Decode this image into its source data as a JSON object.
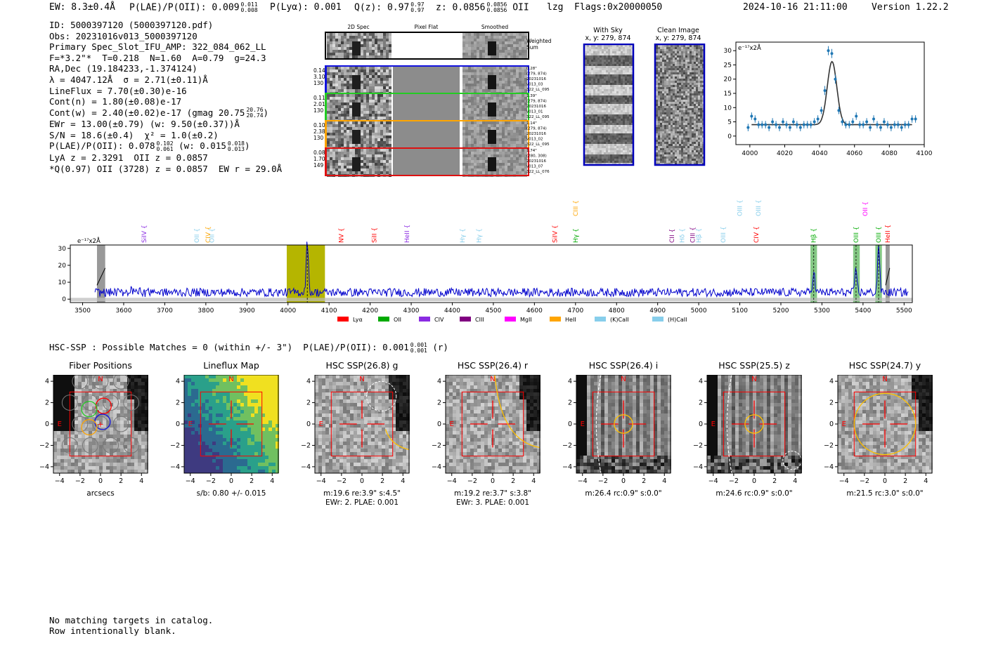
{
  "header": {
    "ew": "EW: 8.3±0.4Å",
    "plae_label": "P(LAE)/P(OII): 0.009",
    "plae_hi": "0.011",
    "plae_lo": "0.008",
    "plya": "P(Lyα): 0.001",
    "q_label": "Q(z): 0.97",
    "q_hi": "0.97",
    "q_lo": "0.97",
    "z_label": "z: 0.0856",
    "z_hi": "0.0856",
    "z_lo": "0.0856",
    "z_line": "OII",
    "user": "lzg",
    "flags": "Flags:0x20000050",
    "datetime": "2024-10-16 21:11:00",
    "version": "Version 1.22.2"
  },
  "info": {
    "id": "ID: 5000397120 (5000397120.pdf)",
    "obs": "Obs: 20231016v013_5000397120",
    "primary": "Primary Spec_Slot_IFU_AMP: 322_084_062_LL",
    "params": "F=*3.2\"*  T=0.218  N=1.60  A=0.79  g=24.3",
    "radec": "RA,Dec (19.184233,-1.374124)",
    "lambda": "λ = 4047.12Å  σ = 2.71(±0.11)Å",
    "lineflux": "LineFlux = 7.70(±0.30)e-16",
    "contn": "Cont(n) = 1.80(±0.08)e-17",
    "contw": "Cont(w) = 2.40(±0.02)e-17 (gmag 20.75",
    "contw_hi": "20.76",
    "contw_lo": "20.74",
    "contw_close": ")",
    "ewr": "EWr = 13.00(±0.79) (w: 9.50(±0.37))Å",
    "sn": "S/N = 18.6(±0.4)  χ² = 1.0(±0.2)",
    "plae": "P(LAE)/P(OII): 0.078",
    "plae_hi": "0.102",
    "plae_lo": "0.061",
    "plae_w": "(w: 0.015",
    "plae_w_hi": "0.018",
    "plae_w_lo": "0.013",
    "plae_w_close": ")",
    "lya": "LyA z = 2.3291  OII z = 0.0857",
    "q": "*Q(0.97) OII (3728) z = 0.0857  EW r = 29.0Å"
  },
  "cutouts": {
    "headers": [
      "2D Spec",
      "Pixel Flat",
      "Smoothed"
    ],
    "weighted_sum": "Weighted Sum",
    "rows": [
      {
        "left": [
          "0.14",
          "3.10",
          "130"
        ],
        "right": [
          "0.28\"",
          "(279, 874)",
          "20231016",
          "v013_03",
          "322_LL_095"
        ],
        "color": "#1111dd"
      },
      {
        "left": [
          "0.11",
          "2.01",
          "130"
        ],
        "right": [
          "1.39\"",
          "(279, 874)",
          "20231016",
          "v013_01",
          "322_LL_095"
        ],
        "color": "#22cc22"
      },
      {
        "left": [
          "0.10",
          "2.38",
          "130"
        ],
        "right": [
          "1.14\"",
          "(279, 874)",
          "20231016",
          "v013_02",
          "322_LL_095"
        ],
        "color": "#ffa500"
      },
      {
        "left": [
          "0.08",
          "1.70",
          "149"
        ],
        "right": [
          "1.74\"",
          "(280, 308)",
          "20231016",
          "v013_07",
          "322_LL_076"
        ],
        "color": "#dd1111"
      }
    ]
  },
  "sky": {
    "with_sky_title": "With Sky",
    "with_sky_xy": "x, y: 279, 874",
    "clean_title": "Clean Image",
    "clean_xy": "x, y: 279, 874"
  },
  "colors": {
    "blue_line": "#0000cc",
    "fit_blue": "#1f77b4",
    "red": "#ff0000",
    "green": "#00aa00",
    "olive": "#b5b500",
    "yellow_circle": "#ffc000"
  },
  "chart_data": [
    {
      "type": "scatter",
      "title": "",
      "unit_label": "e⁻¹⁷x2Å",
      "xlim": [
        3992,
        4100
      ],
      "ylim": [
        -3,
        33
      ],
      "xticks": [
        4000,
        4020,
        4040,
        4060,
        4080,
        4100
      ],
      "yticks": [
        0,
        5,
        10,
        15,
        20,
        25,
        30
      ],
      "x": [
        3999,
        4001,
        4003,
        4005,
        4007,
        4009,
        4011,
        4013,
        4015,
        4017,
        4019,
        4021,
        4023,
        4025,
        4027,
        4029,
        4031,
        4033,
        4035,
        4037,
        4039,
        4041,
        4043,
        4045,
        4047,
        4049,
        4051,
        4053,
        4055,
        4057,
        4059,
        4061,
        4063,
        4065,
        4067,
        4069,
        4071,
        4073,
        4075,
        4077,
        4079,
        4081,
        4083,
        4085,
        4087,
        4089,
        4091,
        4093,
        4095
      ],
      "y": [
        3,
        7,
        6,
        4,
        4,
        4,
        3,
        5,
        4,
        3,
        5,
        4,
        3,
        5,
        4,
        3,
        4,
        4,
        4,
        5,
        6,
        9,
        16,
        30,
        29,
        20,
        9,
        5,
        4,
        4,
        5,
        7,
        4,
        4,
        5,
        3,
        6,
        4,
        3,
        5,
        4,
        3,
        4,
        4,
        3,
        4,
        4,
        6,
        6
      ],
      "fit": {
        "amplitude": 22.2,
        "center": 4047.12,
        "sigma": 2.71,
        "continuum": 4.0
      }
    },
    {
      "type": "line",
      "title": "",
      "unit_label": "e⁻¹⁷x2Å",
      "xlim": [
        3470,
        5520
      ],
      "ylim": [
        -2,
        32
      ],
      "xticks": [
        3500,
        3600,
        3700,
        3800,
        3900,
        4000,
        4100,
        4200,
        4300,
        4400,
        4500,
        4600,
        4700,
        4800,
        4900,
        5000,
        5100,
        5200,
        5300,
        5400,
        5500
      ],
      "yticks": [
        0,
        10,
        20,
        30
      ],
      "emission_peaks": [
        {
          "center": 4047,
          "height": 30,
          "sigma": 2.7
        },
        {
          "center": 5280,
          "height": 13,
          "sigma": 2.5
        },
        {
          "center": 5383,
          "height": 14,
          "sigma": 2.5
        },
        {
          "center": 5438,
          "height": 29,
          "sigma": 2.5
        }
      ],
      "noise_level": 4,
      "highlight_band": [
        3997,
        4090
      ],
      "hatched_bands": [
        [
          3535,
          3555
        ],
        [
          5455,
          5465
        ]
      ],
      "green_bands": [
        [
          5272,
          5288
        ],
        [
          5376,
          5392
        ],
        [
          5430,
          5446
        ]
      ],
      "lines": [
        {
          "label": "SiIV",
          "wave": 3650,
          "color": "#8a2be2",
          "tier": 1
        },
        {
          "label": "OII",
          "wave": 3778,
          "color": "#87ceeb",
          "tier": 1
        },
        {
          "label": "CIV",
          "wave": 3805,
          "color": "#ffa500",
          "tier": 1
        },
        {
          "label": "OII",
          "wave": 3815,
          "color": "#87ceeb",
          "tier": 1
        },
        {
          "label": "NV",
          "wave": 4130,
          "color": "#ff0000",
          "tier": 1
        },
        {
          "label": "SiII",
          "wave": 4210,
          "color": "#ff0000",
          "tier": 1
        },
        {
          "label": "HeII",
          "wave": 4290,
          "color": "#8a2be2",
          "tier": 1
        },
        {
          "label": "Hγ",
          "wave": 4425,
          "color": "#87ceeb",
          "tier": 1
        },
        {
          "label": "Hγ",
          "wave": 4465,
          "color": "#87ceeb",
          "tier": 1
        },
        {
          "label": "SiIV",
          "wave": 4650,
          "color": "#ff0000",
          "tier": 1
        },
        {
          "label": "CIII",
          "wave": 4700,
          "color": "#ffa500",
          "tier": 0
        },
        {
          "label": "Hγ",
          "wave": 4700,
          "color": "#00aa00",
          "tier": 1
        },
        {
          "label": "CII",
          "wave": 4935,
          "color": "#800080",
          "tier": 1
        },
        {
          "label": "Hδ",
          "wave": 4960,
          "color": "#87ceeb",
          "tier": 1
        },
        {
          "label": "CIII",
          "wave": 4985,
          "color": "#800080",
          "tier": 1
        },
        {
          "label": "Hβ",
          "wave": 5000,
          "color": "#87ceeb",
          "tier": 1
        },
        {
          "label": "OIII",
          "wave": 5060,
          "color": "#87ceeb",
          "tier": 1
        },
        {
          "label": "OIII",
          "wave": 5100,
          "color": "#87ceeb",
          "tier": 0
        },
        {
          "label": "OIII",
          "wave": 5145,
          "color": "#87ceeb",
          "tier": 0
        },
        {
          "label": "CIV",
          "wave": 5140,
          "color": "#ff0000",
          "tier": 1
        },
        {
          "label": "Hβ",
          "wave": 5280,
          "color": "#00aa00",
          "tier": 1
        },
        {
          "label": "OIII",
          "wave": 5383,
          "color": "#00aa00",
          "tier": 1
        },
        {
          "label": "OII",
          "wave": 5405,
          "color": "#ff00ff",
          "tier": 0
        },
        {
          "label": "OIII",
          "wave": 5438,
          "color": "#00aa00",
          "tier": 1
        },
        {
          "label": "HeII",
          "wave": 5460,
          "color": "#ff0000",
          "tier": 1
        }
      ],
      "legend": [
        {
          "label": "Lyα",
          "color": "#ff0000"
        },
        {
          "label": "OII",
          "color": "#00aa00"
        },
        {
          "label": "CIV",
          "color": "#8a2be2"
        },
        {
          "label": "CIII",
          "color": "#800080"
        },
        {
          "label": "MgII",
          "color": "#ff00ff"
        },
        {
          "label": "HeII",
          "color": "#ffa500"
        },
        {
          "label": "(K)CaII",
          "color": "#87ceeb"
        },
        {
          "label": "(H)CaII",
          "color": "#87ceeb"
        }
      ]
    }
  ],
  "hsc": {
    "summary_prefix": "HSC-SSP : Possible Matches = 0 (within +/- 3\")  P(LAE)/P(OII): 0.001",
    "summary_hi": "0.001",
    "summary_lo": "0.001",
    "summary_suffix": "(r)",
    "ticks": [
      "−4",
      "−2",
      "0",
      "2",
      "4"
    ],
    "north": "N",
    "east": "E",
    "panels": [
      {
        "title": "Fiber Positions",
        "caption1": "arcsecs",
        "caption2": "",
        "kind": "fiber"
      },
      {
        "title": "Lineflux Map",
        "caption1": "s/b: 0.80 +/- 0.015",
        "caption2": "",
        "kind": "lineflux"
      },
      {
        "title": "HSC SSP(26.8) g",
        "caption1": "m:19.6  re:3.9\"  s:4.5\"",
        "caption2": "EWr: 2. PLAE: 0.001",
        "kind": "g"
      },
      {
        "title": "HSC SSP(26.4) r",
        "caption1": "m:19.2  re:3.7\"  s:3.8\"",
        "caption2": "EWr: 3. PLAE: 0.001",
        "kind": "r"
      },
      {
        "title": "HSC SSP(26.4) i",
        "caption1": "m:26.4 rc:0.9\"  s:0.0\"",
        "caption2": "",
        "kind": "i"
      },
      {
        "title": "HSC SSP(25.5) z",
        "caption1": "m:24.6 rc:0.9\"  s:0.0\"",
        "caption2": "",
        "kind": "z"
      },
      {
        "title": "HSC SSP(24.7) y",
        "caption1": "m:21.5 rc:3.0\"  s:0.0\"",
        "caption2": "",
        "kind": "y"
      }
    ]
  },
  "footer": {
    "line1": "No matching targets in catalog.",
    "line2": "Row intentionally blank."
  }
}
